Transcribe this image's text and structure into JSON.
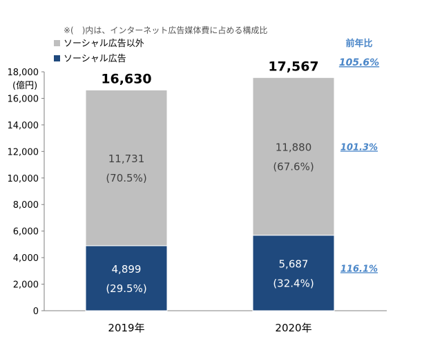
{
  "chart_data": {
    "type": "bar",
    "stacked": true,
    "categories": [
      "2019年",
      "2020年"
    ],
    "series": [
      {
        "name": "ソーシャル広告",
        "values": [
          4899,
          5687
        ],
        "value_labels": [
          "4,899",
          "5,687"
        ],
        "share_labels": [
          "(29.5%)",
          "(32.4%)"
        ],
        "yoy": "116.1%",
        "color": "#1f497d",
        "text_color": "#ffffff"
      },
      {
        "name": "ソーシャル広告以外",
        "values": [
          11731,
          11880
        ],
        "value_labels": [
          "11,731",
          "11,880"
        ],
        "share_labels": [
          "(70.5%)",
          "(67.6%)"
        ],
        "yoy": "101.3%",
        "color": "#bfbfbf",
        "text_color": "#404040"
      }
    ],
    "totals": [
      16630,
      17567
    ],
    "total_labels": [
      "16,630",
      "17,567"
    ],
    "total_yoy": "105.6%",
    "yoy_header": "前年比",
    "yoy_color": "#4a86c8",
    "note": "※(　)内は、インターネット広告媒体費に占める構成比",
    "ylabel": "(億円)",
    "ylim": [
      0,
      18000
    ],
    "yticks": [
      0,
      2000,
      4000,
      6000,
      8000,
      10000,
      12000,
      14000,
      16000,
      18000
    ],
    "ytick_labels": [
      "0",
      "2,000",
      "4,000",
      "6,000",
      "8,000",
      "10,000",
      "12,000",
      "14,000",
      "16,000",
      "18,000"
    ],
    "legend_position": "top-left",
    "grid": false
  }
}
